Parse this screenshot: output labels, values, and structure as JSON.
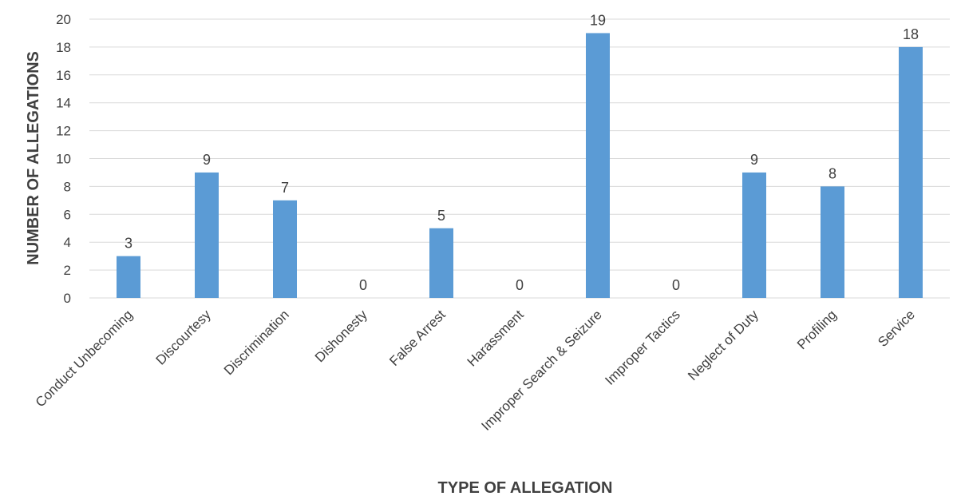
{
  "chart_data": {
    "type": "bar",
    "title": "",
    "xlabel": "TYPE OF ALLEGATION",
    "ylabel": "NUMBER OF ALLEGATIONS",
    "categories": [
      "Conduct Unbecoming",
      "Discourtesy",
      "Discrimination",
      "Dishonesty",
      "False Arrest",
      "Harassment",
      "Improper Search & Seizure",
      "Improper Tactics",
      "Neglect of Duty",
      "Profiling",
      "Service"
    ],
    "values": [
      3,
      9,
      7,
      0,
      5,
      0,
      19,
      0,
      9,
      8,
      18
    ],
    "ylim": [
      0,
      20
    ],
    "yticks": [
      0,
      2,
      4,
      6,
      8,
      10,
      12,
      14,
      16,
      18,
      20
    ],
    "grid": true,
    "legend": "none",
    "bar_color": "#5b9bd5"
  }
}
